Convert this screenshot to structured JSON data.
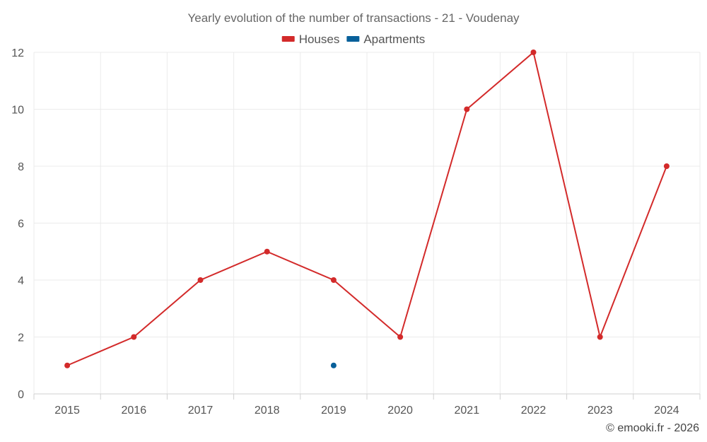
{
  "chart_data": {
    "type": "line",
    "title": "Yearly evolution of the number of transactions - 21 - Voudenay",
    "xlabel": "",
    "ylabel": "",
    "categories": [
      "2015",
      "2016",
      "2017",
      "2018",
      "2019",
      "2020",
      "2021",
      "2022",
      "2023",
      "2024"
    ],
    "ylim": [
      0,
      12
    ],
    "yticks": [
      0,
      2,
      4,
      6,
      8,
      10,
      12
    ],
    "grid": true,
    "legend": "top-center",
    "series": [
      {
        "name": "Houses",
        "color": "#d32a2a",
        "values": [
          1,
          2,
          4,
          5,
          4,
          2,
          10,
          12,
          2,
          8
        ]
      },
      {
        "name": "Apartments",
        "color": "#08609a",
        "values": [
          null,
          null,
          null,
          null,
          1,
          null,
          null,
          null,
          null,
          null
        ]
      }
    ]
  },
  "credit": "© emooki.fr - 2026"
}
